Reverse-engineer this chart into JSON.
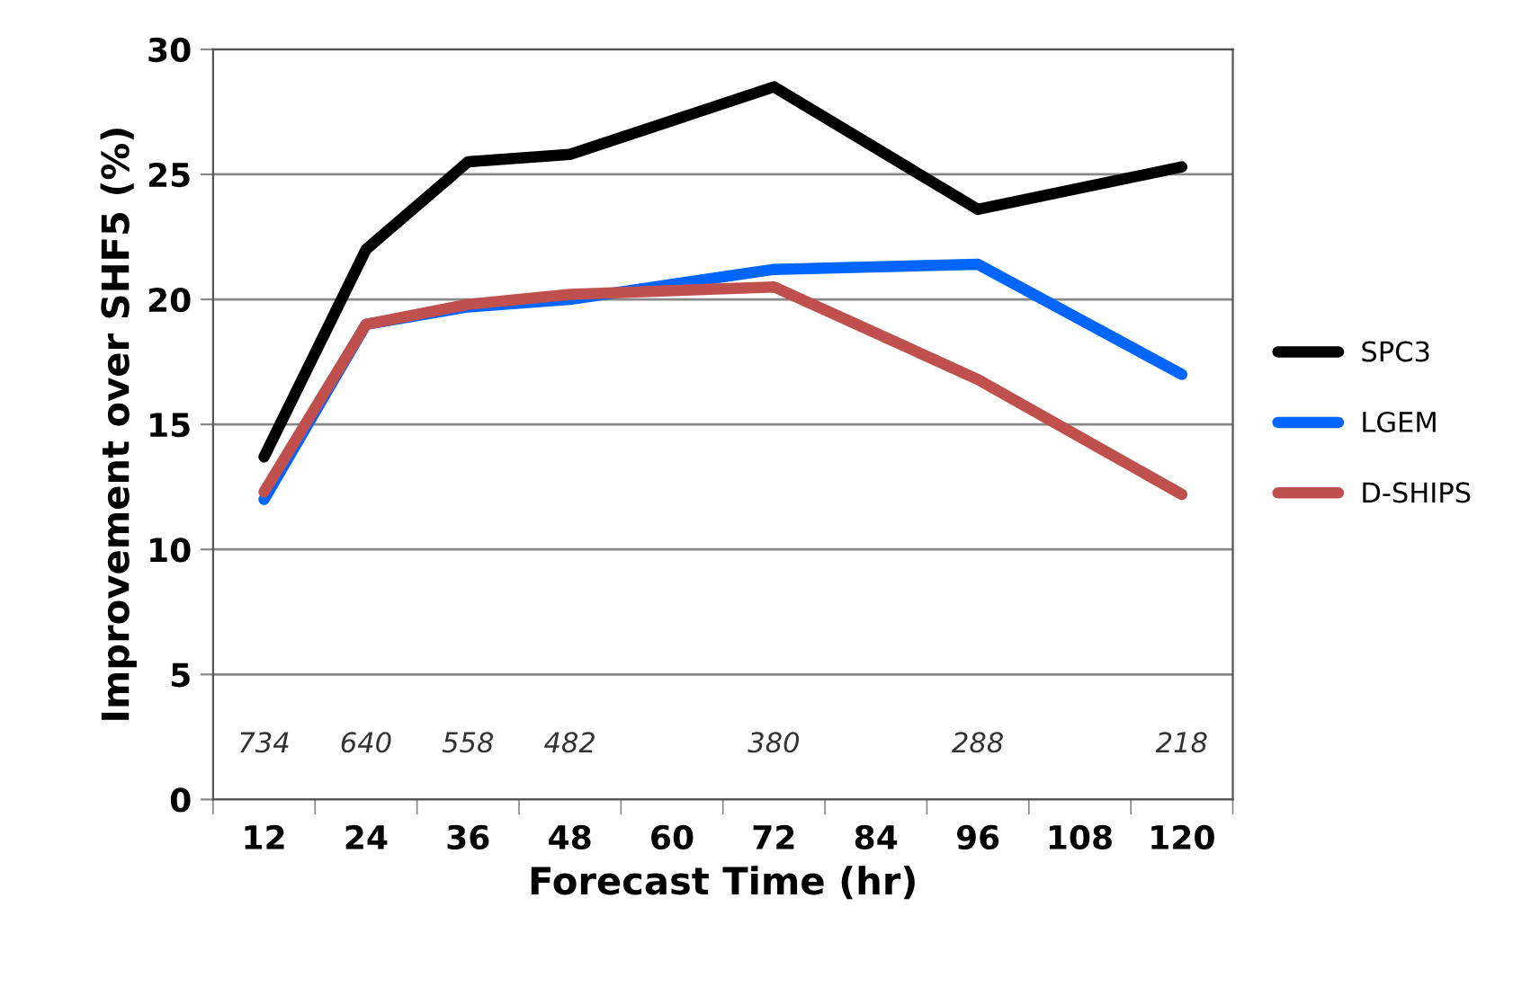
{
  "chart_data": {
    "type": "line",
    "xlabel": "Forecast Time (hr)",
    "ylabel": "Improvement over SHF5 (%)",
    "x": [
      12,
      24,
      36,
      48,
      72,
      96,
      120
    ],
    "series": [
      {
        "name": "SPC3",
        "color": "#000000",
        "values": [
          13.7,
          22.0,
          25.5,
          25.8,
          28.5,
          23.6,
          25.3
        ]
      },
      {
        "name": "LGEM",
        "color": "#0066ff",
        "values": [
          12.0,
          19.0,
          19.7,
          20.0,
          21.2,
          21.4,
          17.0
        ]
      },
      {
        "name": "D-SHIPS",
        "color": "#c0504d",
        "values": [
          12.3,
          19.0,
          19.8,
          20.2,
          20.5,
          16.8,
          12.2
        ]
      }
    ],
    "xlim": [
      6,
      126
    ],
    "xticks": [
      12,
      24,
      36,
      48,
      60,
      72,
      84,
      96,
      108,
      120
    ],
    "ylim": [
      0,
      30
    ],
    "yticks": [
      0,
      5,
      10,
      15,
      20,
      25,
      30
    ],
    "grid": "y",
    "legend": "right",
    "marker": "none",
    "line_style": "solid",
    "annotations": [
      "734",
      "640",
      "558",
      "482",
      "380",
      "288",
      "218"
    ]
  }
}
